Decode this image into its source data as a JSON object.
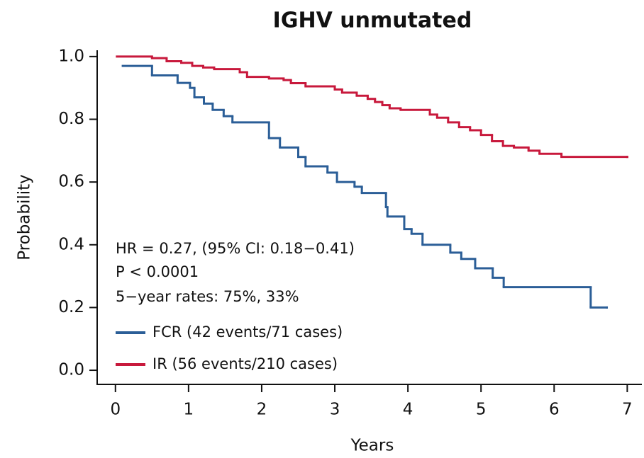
{
  "chart_data": {
    "type": "step",
    "title": "IGHV unmutated",
    "xlabel": "Years",
    "ylabel": "Probability",
    "annotations": [
      "HR = 0.27, (95% CI: 0.18−0.41)",
      "P < 0.0001",
      "5−year rates: 75%, 33%"
    ],
    "xlim": [
      -0.25,
      7.2
    ],
    "ylim": [
      -0.045,
      1.02
    ],
    "xticks": [
      0,
      1,
      2,
      3,
      4,
      5,
      6,
      7
    ],
    "yticks": [
      {
        "value": 0,
        "label": "0.0"
      },
      0.2,
      0.4,
      0.6,
      0.8,
      {
        "value": 1,
        "label": "1.0"
      }
    ],
    "series": [
      {
        "name": "FCR (42 events/71 cases)",
        "color": "#2b5e97",
        "x": [
          0.1,
          0.5,
          0.85,
          1.02,
          1.08,
          1.21,
          1.33,
          1.48,
          1.6,
          2.1,
          2.25,
          2.5,
          2.6,
          2.9,
          3.03,
          3.27,
          3.37,
          3.7,
          3.72,
          3.95,
          4.05,
          4.2,
          4.58,
          4.73,
          4.92,
          5.16,
          5.31,
          6.5,
          6.72
        ],
        "values": [
          0.97,
          0.94,
          0.916,
          0.9,
          0.87,
          0.85,
          0.83,
          0.81,
          0.79,
          0.74,
          0.71,
          0.68,
          0.65,
          0.63,
          0.6,
          0.585,
          0.565,
          0.52,
          0.49,
          0.45,
          0.435,
          0.4,
          0.375,
          0.355,
          0.325,
          0.295,
          0.265,
          0.2,
          0.2
        ]
      },
      {
        "name": "IR (56 events/210 cases)",
        "color": "#c8193c",
        "x": [
          0.02,
          0.5,
          0.7,
          0.9,
          1.05,
          1.2,
          1.35,
          1.7,
          1.8,
          2.1,
          2.3,
          2.4,
          2.6,
          3.0,
          3.1,
          3.3,
          3.45,
          3.55,
          3.65,
          3.75,
          3.9,
          4.3,
          4.4,
          4.55,
          4.7,
          4.85,
          5.0,
          5.15,
          5.3,
          5.45,
          5.65,
          5.8,
          6.1,
          7.0
        ],
        "values": [
          1.0,
          0.995,
          0.985,
          0.98,
          0.97,
          0.965,
          0.96,
          0.95,
          0.935,
          0.93,
          0.925,
          0.915,
          0.905,
          0.895,
          0.885,
          0.875,
          0.865,
          0.855,
          0.845,
          0.835,
          0.83,
          0.815,
          0.805,
          0.79,
          0.775,
          0.765,
          0.75,
          0.73,
          0.715,
          0.71,
          0.7,
          0.69,
          0.68,
          0.68
        ]
      }
    ]
  }
}
